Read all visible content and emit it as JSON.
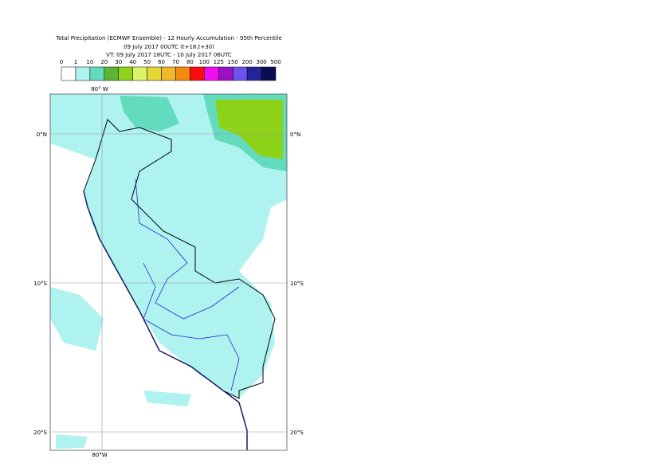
{
  "header": {
    "title": "Total Precipitation (ECMWF Ensemble) - 12 Hourly Accumulation - 95th Percentile",
    "base_time": "09 July 2017 00UTC (t+18,t+30)",
    "valid_time": "VT: 09 July 2017 18UTC - 10 July 2017 06UTC"
  },
  "legend": {
    "labels": [
      "0",
      "1",
      "10",
      "20",
      "30",
      "40",
      "50",
      "60",
      "70",
      "80",
      "100",
      "125",
      "150",
      "200",
      "300",
      "500"
    ],
    "colors": [
      "#ffffff",
      "#aef3ef",
      "#62dbbf",
      "#5fb531",
      "#8fd21a",
      "#dcf46a",
      "#e3d834",
      "#f2b82c",
      "#f68a10",
      "#fb0c0c",
      "#ef0ef0",
      "#9d0fc4",
      "#6e52ee",
      "#24249a",
      "#0c0c55"
    ]
  },
  "map": {
    "lon_labels": {
      "top": "80° W",
      "bottom": "80°W"
    },
    "lat_labels": [
      "0°N",
      "10°S",
      "20°S"
    ]
  }
}
